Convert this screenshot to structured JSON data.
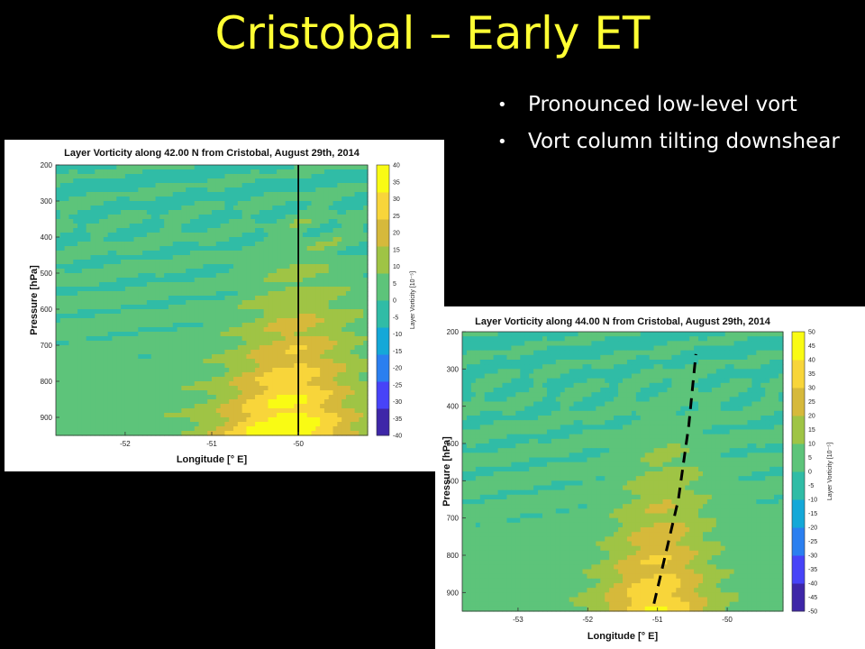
{
  "slide": {
    "title": "Cristobal – Early ET",
    "bullets": [
      "Pronounced low-level vort",
      "Vort column tilting downshear"
    ]
  },
  "colors": {
    "background": "#000000",
    "title": "#ffff33",
    "bullet_text": "#ffffff",
    "colormap": [
      "#3e26a8",
      "#4743f8",
      "#2b7ff0",
      "#14a8d8",
      "#30bca6",
      "#5dc47a",
      "#9fc445",
      "#d6b93b",
      "#f8d53a",
      "#f9fb14"
    ]
  },
  "chart_data": [
    {
      "type": "heatmap",
      "title": "Layer Vorticity along 42.00 N from Cristobal, August 29th, 2014",
      "xlabel": "Longitude [° E]",
      "ylabel": "Pressure [hPa]",
      "colorbar_label": "Layer Vorticity [10⁻⁵]",
      "xlim": [
        -52.8,
        -49.2
      ],
      "x_ticks": [
        -52,
        -51,
        -50
      ],
      "ylim": [
        200,
        950
      ],
      "y_ticks": [
        200,
        300,
        400,
        500,
        600,
        700,
        800,
        900
      ],
      "clim": [
        -40,
        40
      ],
      "colorbar_ticks": [
        40,
        35,
        30,
        25,
        20,
        15,
        10,
        5,
        0,
        -5,
        -10,
        -15,
        -20,
        -25,
        -30,
        -35,
        -40
      ],
      "center_lon": -50.15,
      "peak_value": 35,
      "marker_line": {
        "style": "solid",
        "lon": -50
      }
    },
    {
      "type": "heatmap",
      "title": "Layer Vorticity along 44.00 N from Cristobal, August 29th, 2014",
      "xlabel": "Longitude [° E]",
      "ylabel": "Pressure [hPa]",
      "colorbar_label": "Layer Vorticity [10⁻⁵]",
      "xlim": [
        -53.8,
        -49.2
      ],
      "x_ticks": [
        -53,
        -52,
        -51,
        -50
      ],
      "ylim": [
        200,
        950
      ],
      "y_ticks": [
        200,
        300,
        400,
        500,
        600,
        700,
        800,
        900
      ],
      "clim": [
        -50,
        50
      ],
      "colorbar_ticks": [
        50,
        45,
        40,
        35,
        30,
        25,
        20,
        15,
        10,
        5,
        0,
        -5,
        -10,
        -15,
        -20,
        -25,
        -30,
        -35,
        -40,
        -45,
        -50
      ],
      "center_lon": -51.05,
      "peak_value": 35,
      "marker_line": {
        "style": "dashed",
        "points": [
          [
            -51.05,
            930
          ],
          [
            -50.7,
            650
          ],
          [
            -50.55,
            450
          ],
          [
            -50.45,
            260
          ]
        ]
      }
    }
  ]
}
